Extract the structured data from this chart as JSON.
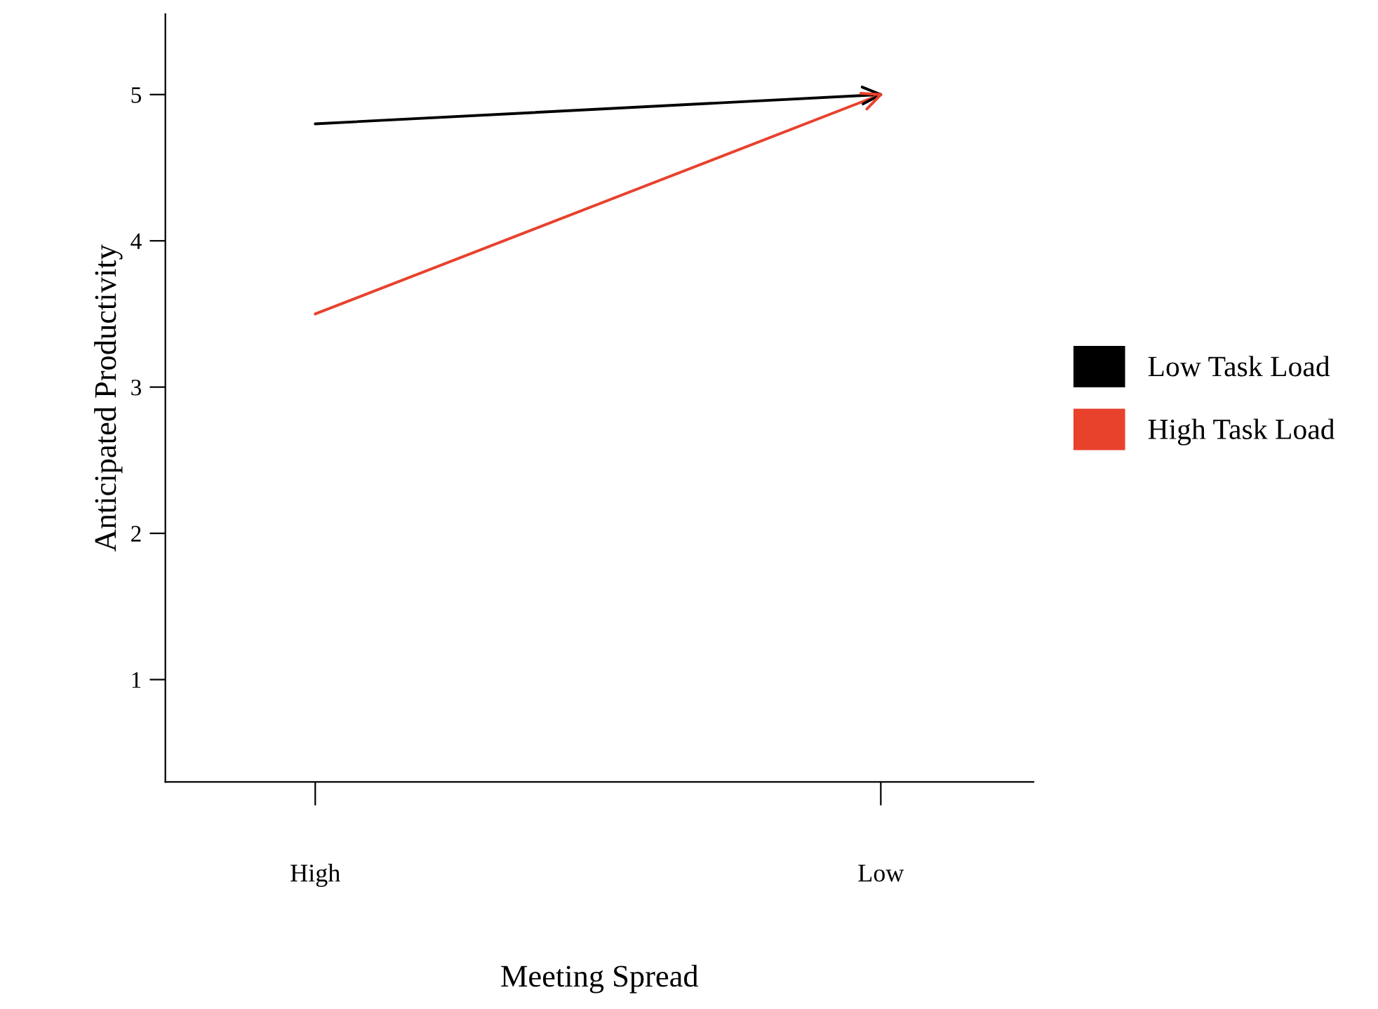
{
  "chart_data": {
    "type": "line",
    "xlabel": "Meeting Spread",
    "ylabel": "Anticipated Productivity",
    "categories": [
      "High",
      "Low"
    ],
    "series": [
      {
        "name": "Low Task Load",
        "color": "#000000",
        "values": [
          4.8,
          5.0
        ]
      },
      {
        "name": "High Task Load",
        "color": "#e8412c",
        "values": [
          3.5,
          5.0
        ]
      }
    ],
    "ylim": [
      0.3,
      5.55
    ],
    "yticks": [
      1,
      2,
      3,
      4,
      5
    ],
    "grid": false,
    "legend": "right",
    "line_style": "solid"
  }
}
